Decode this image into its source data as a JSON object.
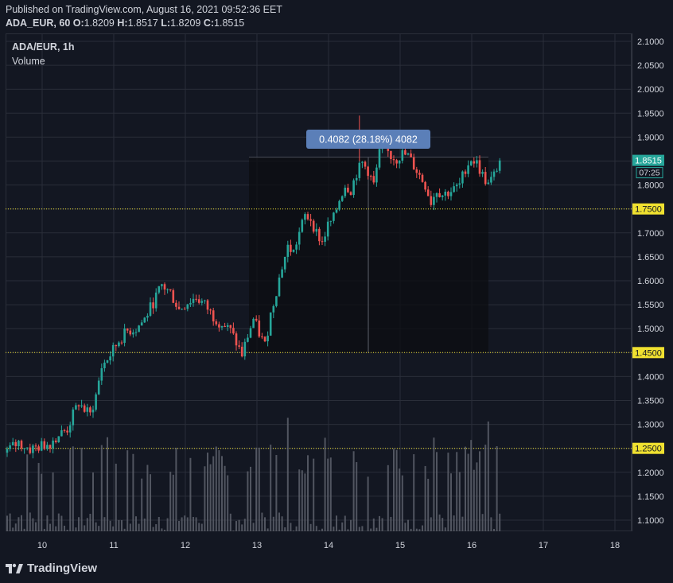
{
  "header": {
    "published": "Published on TradingView.com, August 16, 2021 09:52:36 EET",
    "symbol_interval": "ADA_EUR, 60",
    "o_label": "O:",
    "o_value": "1.8209",
    "h_label": "H:",
    "h_value": "1.8517",
    "l_label": "L:",
    "l_value": "1.8209",
    "c_label": "C:",
    "c_value": "1.8515"
  },
  "legend": {
    "symbol": "ADA/EUR, 1h",
    "volume": "Volume"
  },
  "brand": {
    "name": "TradingView"
  },
  "colors": {
    "background": "#131722",
    "grid": "#2a2e39",
    "text": "#d1d4dc",
    "up": "#26a69a",
    "down": "#ef5350",
    "volume": "#5d606b",
    "hline": "#f0e130",
    "price_label": "#26a69a",
    "measure": "#5b7fb8"
  },
  "chart_data": {
    "type": "candlestick",
    "title": "ADA/EUR, 1h",
    "y_ticks": [
      "2.1000",
      "2.0500",
      "2.0000",
      "1.9500",
      "1.9000",
      "1.8500",
      "1.8000",
      "1.7500",
      "1.7000",
      "1.6500",
      "1.6000",
      "1.5500",
      "1.5000",
      "1.4500",
      "1.4000",
      "1.3500",
      "1.3000",
      "1.2500",
      "1.2000",
      "1.1500",
      "1.1000"
    ],
    "x_ticks": [
      "10",
      "11",
      "12",
      "13",
      "14",
      "15",
      "16",
      "17",
      "18"
    ],
    "ylim": [
      1.08,
      2.12
    ],
    "close_path": [
      [
        0,
        1.245
      ],
      [
        4,
        1.262
      ],
      [
        8,
        1.248
      ],
      [
        12,
        1.255
      ],
      [
        15,
        1.262
      ],
      [
        18,
        1.278
      ],
      [
        21,
        1.29
      ],
      [
        23,
        1.32
      ],
      [
        25,
        1.345
      ],
      [
        27,
        1.33
      ],
      [
        29,
        1.32
      ],
      [
        31,
        1.36
      ],
      [
        33,
        1.42
      ],
      [
        36,
        1.445
      ],
      [
        39,
        1.475
      ],
      [
        42,
        1.495
      ],
      [
        45,
        1.5
      ],
      [
        48,
        1.52
      ],
      [
        51,
        1.555
      ],
      [
        54,
        1.59
      ],
      [
        57,
        1.575
      ],
      [
        60,
        1.54
      ],
      [
        63,
        1.555
      ],
      [
        66,
        1.565
      ],
      [
        69,
        1.55
      ],
      [
        72,
        1.525
      ],
      [
        75,
        1.51
      ],
      [
        78,
        1.495
      ],
      [
        80,
        1.47
      ],
      [
        82,
        1.445
      ],
      [
        84,
        1.485
      ],
      [
        86,
        1.52
      ],
      [
        88,
        1.49
      ],
      [
        90,
        1.465
      ],
      [
        92,
        1.53
      ],
      [
        94,
        1.58
      ],
      [
        96,
        1.63
      ],
      [
        98,
        1.67
      ],
      [
        100,
        1.66
      ],
      [
        102,
        1.7
      ],
      [
        104,
        1.735
      ],
      [
        106,
        1.73
      ],
      [
        108,
        1.7
      ],
      [
        110,
        1.68
      ],
      [
        112,
        1.715
      ],
      [
        114,
        1.73
      ],
      [
        116,
        1.77
      ],
      [
        118,
        1.8
      ],
      [
        120,
        1.79
      ],
      [
        122,
        1.825
      ],
      [
        124,
        1.845
      ],
      [
        126,
        1.83
      ],
      [
        128,
        1.8
      ],
      [
        130,
        1.865
      ],
      [
        132,
        1.875
      ],
      [
        134,
        1.86
      ],
      [
        136,
        1.855
      ],
      [
        138,
        1.865
      ],
      [
        140,
        1.86
      ],
      [
        142,
        1.84
      ],
      [
        144,
        1.82
      ],
      [
        146,
        1.8
      ],
      [
        148,
        1.765
      ],
      [
        150,
        1.79
      ],
      [
        152,
        1.78
      ],
      [
        154,
        1.785
      ],
      [
        156,
        1.79
      ],
      [
        158,
        1.8
      ],
      [
        160,
        1.835
      ],
      [
        162,
        1.855
      ],
      [
        164,
        1.845
      ],
      [
        166,
        1.82
      ],
      [
        168,
        1.8
      ],
      [
        170,
        1.82
      ],
      [
        172,
        1.8515
      ]
    ],
    "volume_range": [
      0,
      2500
    ],
    "horizontal_levels": [
      "1.7500",
      "1.4500",
      "1.2500"
    ],
    "last_price": "1.8515",
    "countdown": "07:25",
    "measure_label": "0.4082 (28.18%) 4082",
    "measure_range": [
      1.45,
      1.8582
    ]
  }
}
